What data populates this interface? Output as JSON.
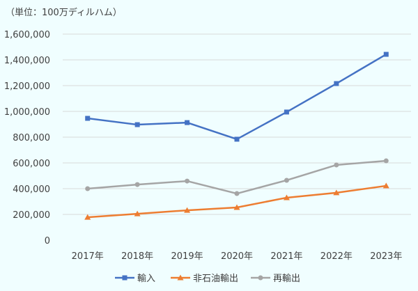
{
  "chart_data": {
    "type": "line",
    "unit_label": "（単位：100万ディルハム）",
    "categories": [
      "2017年",
      "2018年",
      "2019年",
      "2020年",
      "2021年",
      "2022年",
      "2023年"
    ],
    "ylim": [
      0,
      1600000
    ],
    "yticks": [
      0,
      200000,
      400000,
      600000,
      800000,
      1000000,
      1200000,
      1400000,
      1600000
    ],
    "ytick_labels": [
      "0",
      "200,000",
      "400,000",
      "600,000",
      "800,000",
      "1,000,000",
      "1,200,000",
      "1,400,000",
      "1,600,000"
    ],
    "grid": true,
    "legend_position": "bottom",
    "series": [
      {
        "name": "輸入",
        "color": "#4472c4",
        "marker": "square",
        "values": [
          946000,
          897000,
          913000,
          784000,
          995000,
          1216000,
          1443000
        ]
      },
      {
        "name": "非石油輸出",
        "color": "#ed7d31",
        "marker": "triangle",
        "values": [
          178000,
          205000,
          232000,
          254000,
          330000,
          368000,
          422000
        ]
      },
      {
        "name": "再輸出",
        "color": "#a5a5a5",
        "marker": "circle",
        "values": [
          400000,
          432000,
          459000,
          362000,
          465000,
          584000,
          616000
        ]
      }
    ]
  }
}
